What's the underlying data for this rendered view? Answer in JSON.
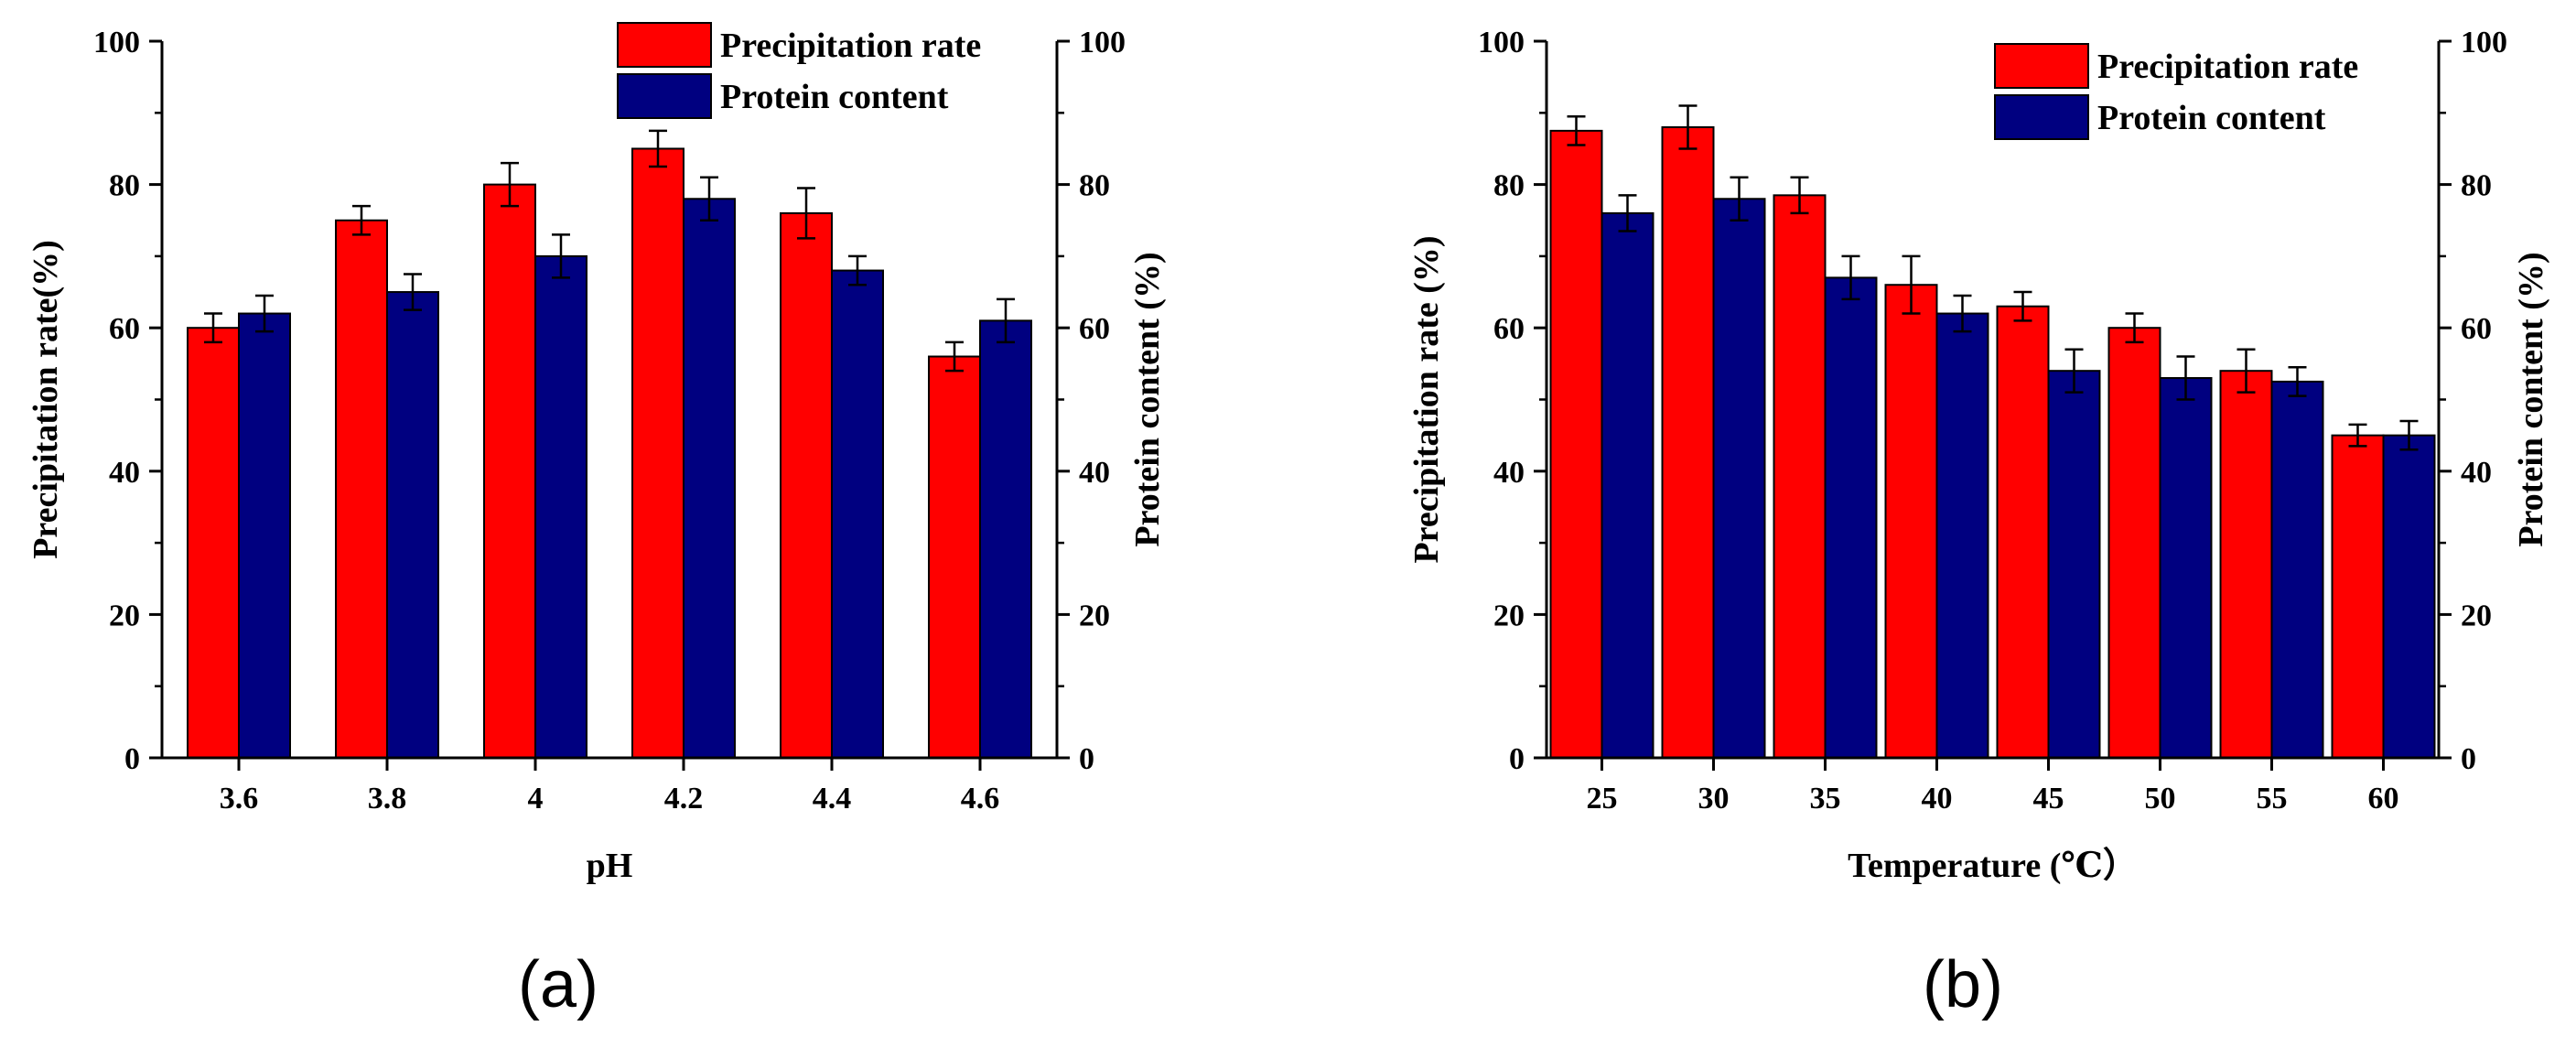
{
  "chart_data": [
    {
      "type": "bar",
      "panel_label": "(a)",
      "xlabel": "pH",
      "ylabel_left": "Precipitation rate(%)",
      "ylabel_right": "Protein content (%)",
      "ylim": [
        0,
        100
      ],
      "yticks": [
        "0",
        "20",
        "40",
        "60",
        "80",
        "100"
      ],
      "legend_position": "top-right",
      "categories": [
        "3.6",
        "3.8",
        "4",
        "4.2",
        "4.4",
        "4.6"
      ],
      "series": [
        {
          "name": "Precipitation rate",
          "color": "#ff0000",
          "values": [
            60,
            75,
            80,
            85,
            76,
            56
          ],
          "errors": [
            2,
            2,
            3,
            2.5,
            3.5,
            2
          ]
        },
        {
          "name": "Protein content",
          "color": "#000080",
          "values": [
            62,
            65,
            70,
            78,
            68,
            61
          ],
          "errors": [
            2.5,
            2.5,
            3,
            3,
            2,
            3
          ]
        }
      ]
    },
    {
      "type": "bar",
      "panel_label": "(b)",
      "xlabel": "Temperature (℃）",
      "ylabel_left": "Precipitation rate (%)",
      "ylabel_right": "Protein content (%)",
      "ylim": [
        0,
        100
      ],
      "yticks": [
        "0",
        "20",
        "40",
        "60",
        "80",
        "100"
      ],
      "legend_position": "top-right",
      "categories": [
        "25",
        "30",
        "35",
        "40",
        "45",
        "50",
        "55",
        "60"
      ],
      "series": [
        {
          "name": "Precipitation rate",
          "color": "#ff0000",
          "values": [
            87.5,
            88,
            78.5,
            66,
            63,
            60,
            54,
            45
          ],
          "errors": [
            2,
            3,
            2.5,
            4,
            2,
            2,
            3,
            1.5
          ]
        },
        {
          "name": "Protein content",
          "color": "#000080",
          "values": [
            76,
            78,
            67,
            62,
            54,
            53,
            52.5,
            45
          ],
          "errors": [
            2.5,
            3,
            3,
            2.5,
            3,
            3,
            2,
            2
          ]
        }
      ]
    }
  ]
}
